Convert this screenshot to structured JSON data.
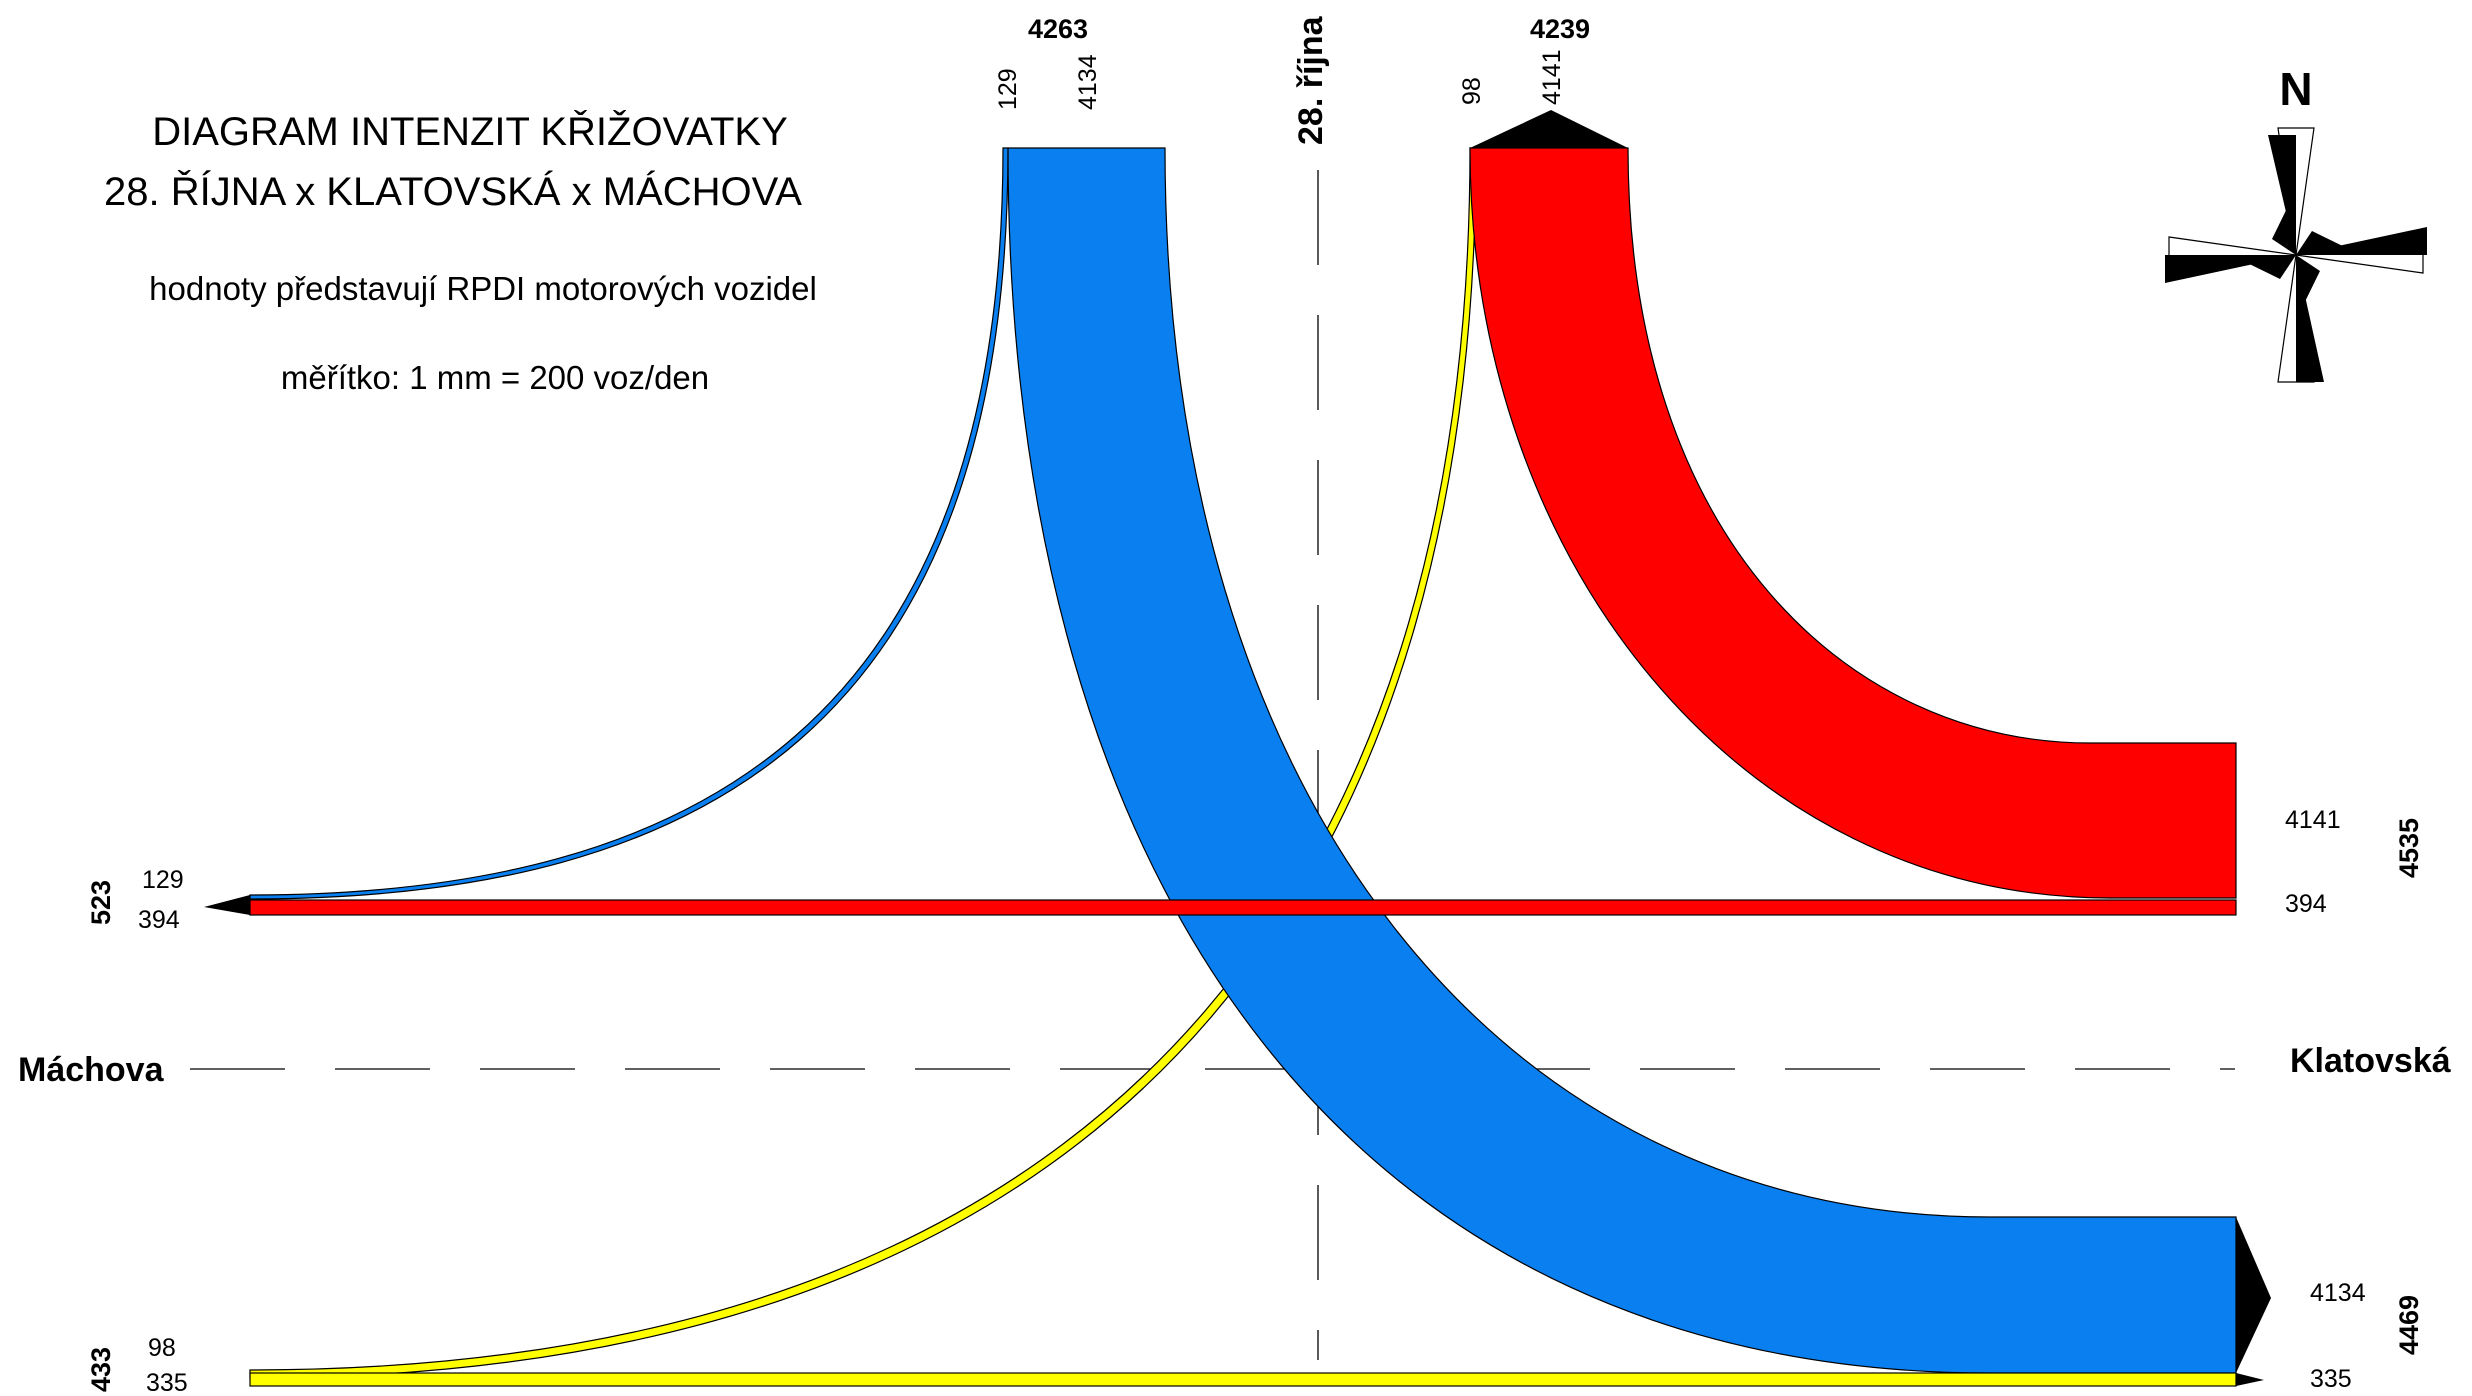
{
  "title": {
    "line1": "DIAGRAM INTENZIT KŘIŽOVATKY",
    "line2": "28. ŘÍJNA x KLATOVSKÁ x MÁCHOVA",
    "note": "hodnoty představují RPDI motorových vozidel",
    "scale": "měřítko: 1 mm = 200 voz/den"
  },
  "compass": {
    "label": "N"
  },
  "streets": {
    "north": "28. října",
    "west": "Máchova",
    "east": "Klatovská"
  },
  "arms": {
    "north_in": {
      "total": "4263",
      "left": "129",
      "right": "4134"
    },
    "north_out": {
      "total": "4239",
      "left": "98",
      "right": "4141"
    },
    "west_upper": {
      "total": "523",
      "upper": "129",
      "lower": "394"
    },
    "west_lower": {
      "total": "433",
      "upper": "98",
      "lower": "335"
    },
    "east_upper": {
      "total": "4535",
      "upper": "4141",
      "lower": "394"
    },
    "east_lower": {
      "total": "4469",
      "upper": "4134",
      "lower": "335"
    }
  },
  "flows": [
    {
      "id": "north-to-east",
      "value": 4134,
      "color": "#0a7ff0"
    },
    {
      "id": "east-to-north",
      "value": 4141,
      "color": "#ff0000"
    },
    {
      "id": "east-to-west",
      "value": 394,
      "color": "#ff0000"
    },
    {
      "id": "west-to-east",
      "value": 335,
      "color": "#ffff00"
    },
    {
      "id": "north-to-west",
      "value": 129,
      "color": "#0a7ff0"
    },
    {
      "id": "west-to-north",
      "value": 98,
      "color": "#ffff00"
    }
  ]
}
